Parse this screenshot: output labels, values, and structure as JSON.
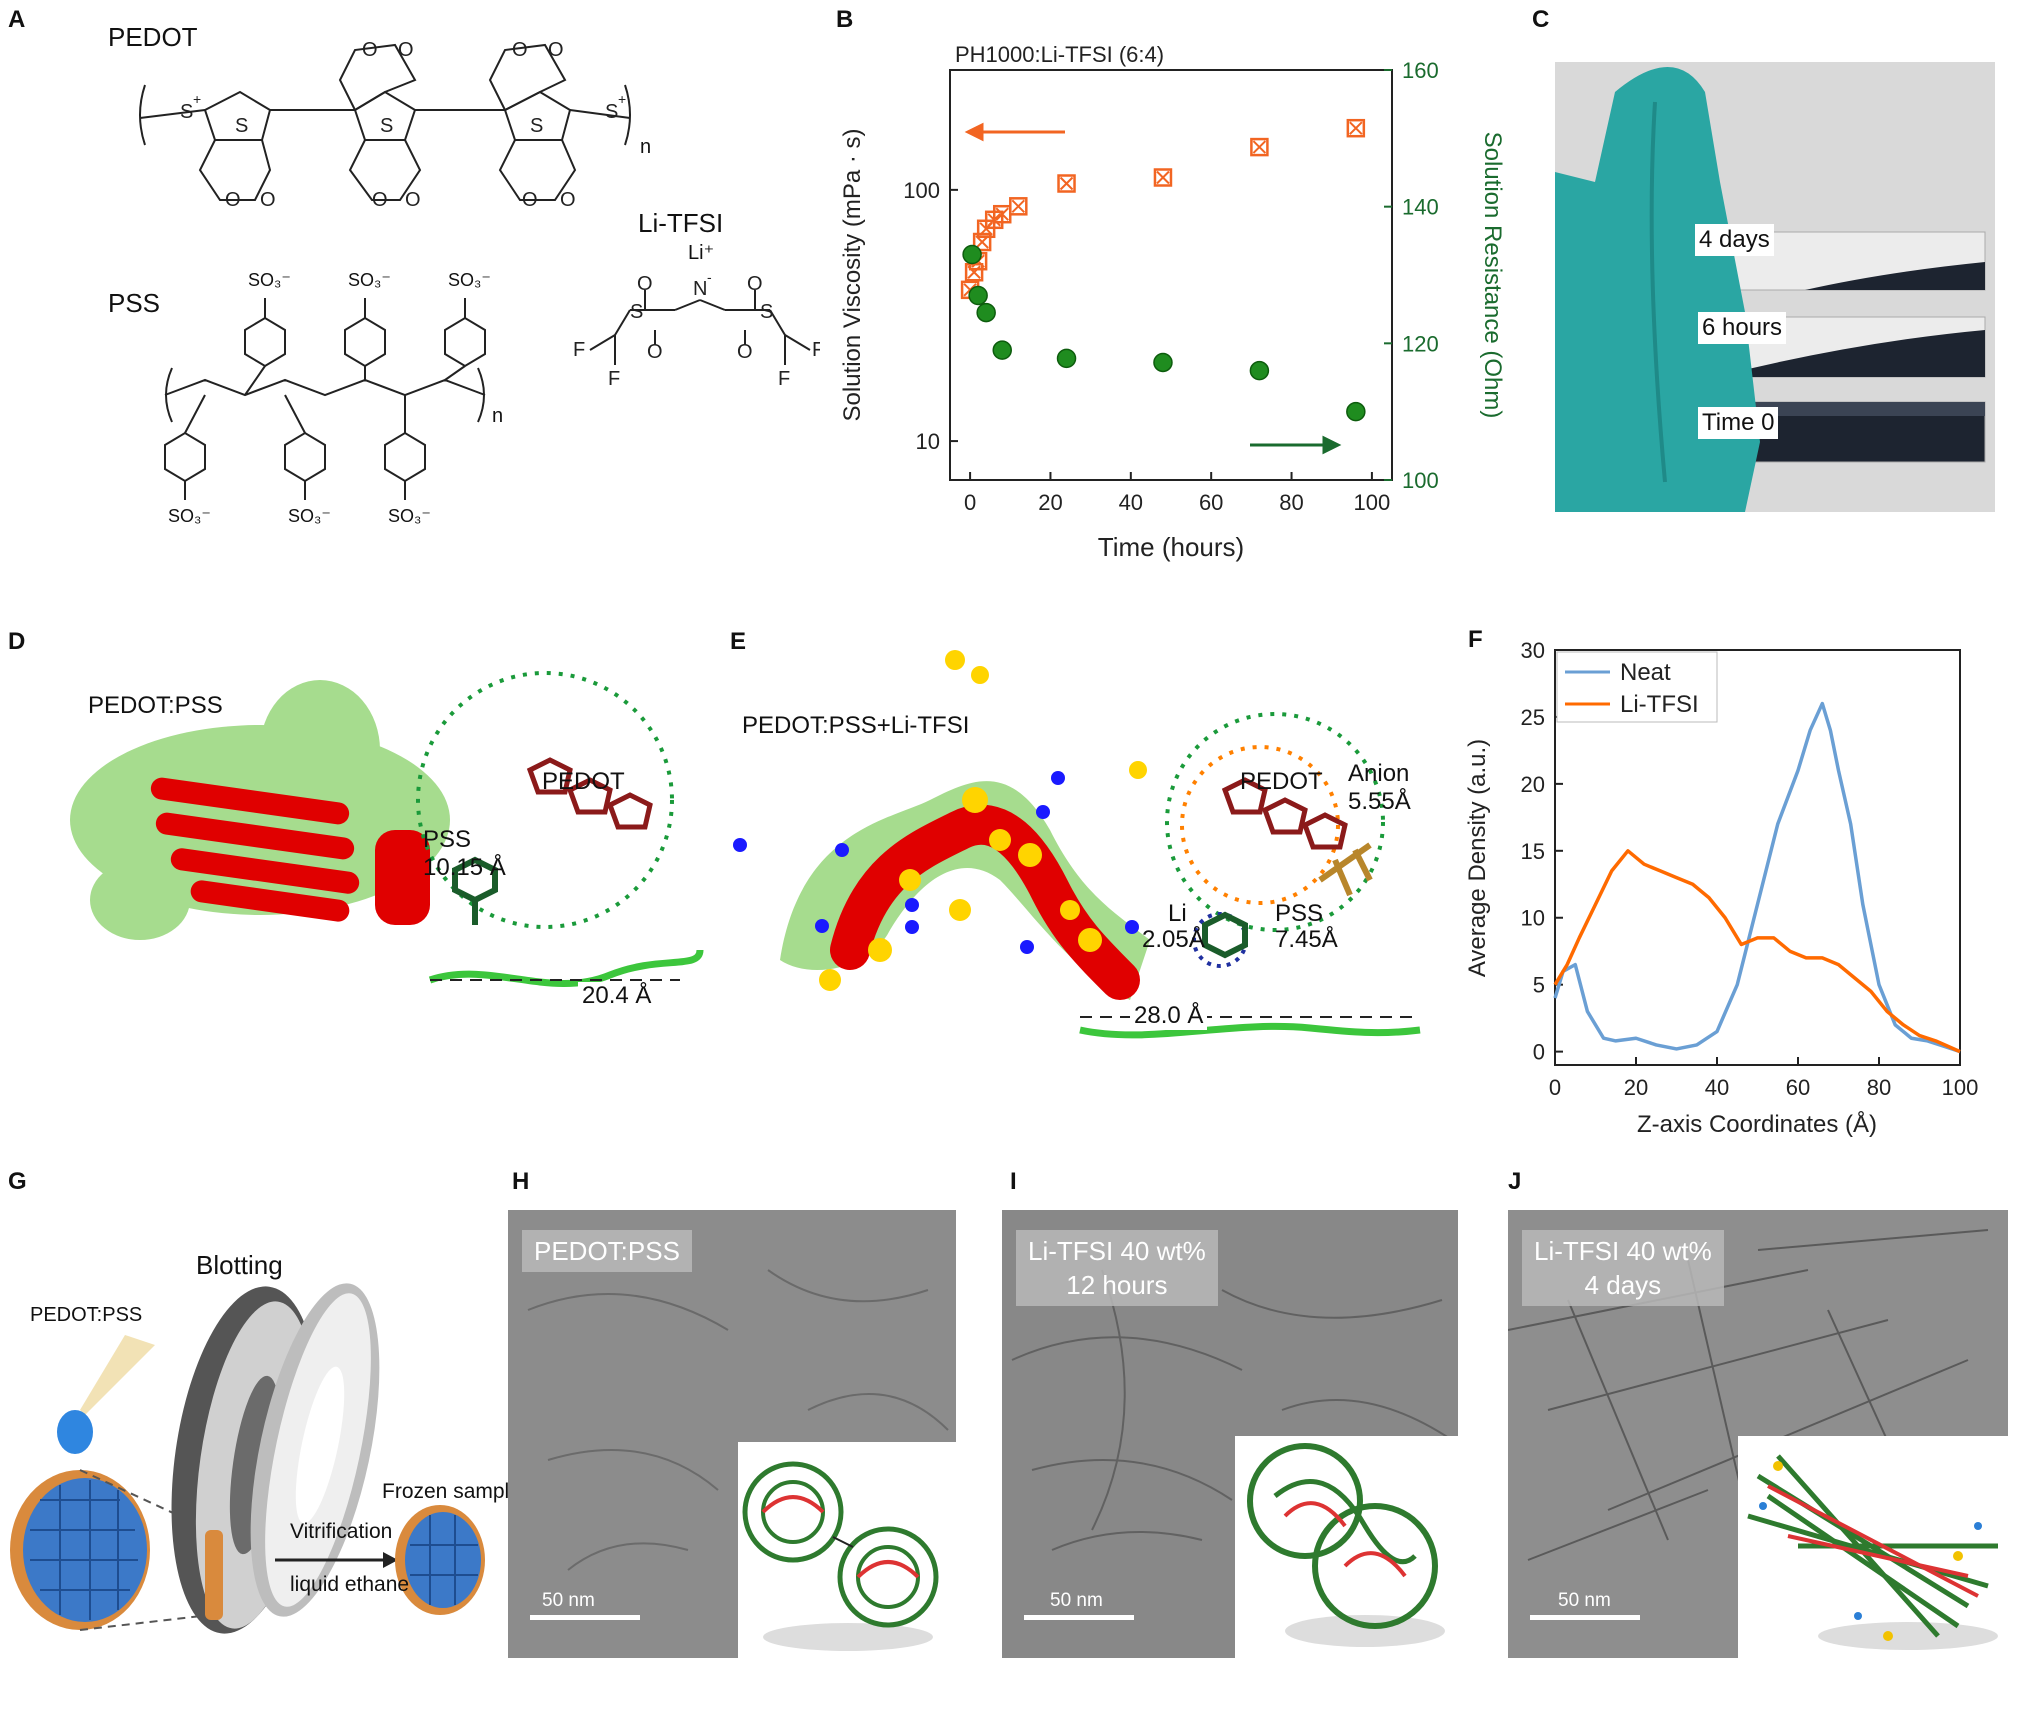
{
  "panels": {
    "A": {
      "label": "A",
      "pedot": "PEDOT",
      "pss": "PSS",
      "litfsi": "Li-TFSI",
      "so3": "SO₃⁻",
      "li_plus": "Li⁺",
      "n": "n"
    },
    "B": {
      "label": "B",
      "title": "PH1000:Li-TFSI (6:4)",
      "xlabel": "Time (hours)",
      "ylabel_left": "Solution Viscosity (mPa · s)",
      "ylabel_right": "Solution Resistance (Ohm)"
    },
    "C": {
      "label": "C",
      "vial_labels": [
        "4 days",
        "6 hours",
        "Time 0"
      ]
    },
    "D": {
      "label": "D",
      "title": "PEDOT:PSS",
      "pedot": "PEDOT",
      "pss": "PSS",
      "pss_dist": "10.15 Å",
      "length": "20.4 Å"
    },
    "E": {
      "label": "E",
      "title": "PEDOT:PSS+Li-TFSI",
      "pedot": "PEDOT",
      "anion": "Anion",
      "anion_dist": "5.55Å",
      "li": "Li",
      "li_dist": "2.05Å",
      "pss": "PSS",
      "pss_dist": "7.45Å",
      "length": "28.0 Å"
    },
    "F": {
      "label": "F",
      "xlabel": "Z-axis Coordinates (Å)",
      "ylabel": "Average Density (a.u.)",
      "legend": [
        "Neat",
        "Li-TFSI"
      ]
    },
    "G": {
      "label": "G",
      "blotting": "Blotting",
      "pedotpss": "PEDOT:PSS",
      "frozen": "Frozen sample",
      "vitrification": "Vitrification",
      "ethane": "liquid ethane"
    },
    "H": {
      "label": "H",
      "tag": "PEDOT:PSS",
      "scale": "50 nm"
    },
    "I": {
      "label": "I",
      "tag_line1": "Li-TFSI 40 wt%",
      "tag_line2": "12 hours",
      "scale": "50 nm"
    },
    "J": {
      "label": "J",
      "tag_line1": "Li-TFSI 40 wt%",
      "tag_line2": "4 days",
      "scale": "50 nm"
    }
  },
  "colors": {
    "orange": "#f26522",
    "green_marker": "#1f8c1f",
    "green_axis": "#1a6b2e",
    "blue_neat": "#6a9fd4",
    "orange_litfsi": "#ff6a00",
    "glove": "#2aa6a3"
  },
  "chart_data": [
    {
      "panel": "B",
      "type": "scatter",
      "title": "PH1000:Li-TFSI (6:4)",
      "xlabel": "Time (hours)",
      "xlim": [
        -5,
        105
      ],
      "xticks": [
        0,
        20,
        40,
        60,
        80,
        100
      ],
      "series": [
        {
          "axis": "left",
          "ylabel": "Solution Viscosity (mPa · s)",
          "scale": "log",
          "ylim": [
            7,
            300
          ],
          "yticks": [
            10,
            100
          ],
          "marker": "crossed-square",
          "x": [
            0,
            1,
            2,
            3,
            4,
            6,
            8,
            12,
            24,
            48,
            72,
            96
          ],
          "y": [
            40,
            47,
            52,
            62,
            70,
            76,
            80,
            86,
            106,
            112,
            148,
            176
          ]
        },
        {
          "axis": "right",
          "ylabel": "Solution Resistance (Ohm)",
          "scale": "linear",
          "ylim": [
            100,
            160
          ],
          "yticks": [
            100,
            120,
            140,
            160
          ],
          "marker": "sphere",
          "x": [
            0.5,
            2,
            4,
            8,
            24,
            48,
            72,
            96
          ],
          "y": [
            133,
            127,
            124.5,
            119,
            117.8,
            117.2,
            116,
            110
          ]
        }
      ]
    },
    {
      "panel": "F",
      "type": "line",
      "xlabel": "Z-axis Coordinates (Å)",
      "ylabel": "Average Density (a.u.)",
      "xlim": [
        0,
        100
      ],
      "ylim": [
        -1,
        30
      ],
      "xticks": [
        0,
        20,
        40,
        60,
        80,
        100
      ],
      "yticks": [
        0,
        5,
        10,
        15,
        20,
        25,
        30
      ],
      "legend_position": "top-left",
      "series": [
        {
          "name": "Neat",
          "x": [
            0,
            2,
            5,
            8,
            12,
            15,
            20,
            25,
            30,
            35,
            40,
            45,
            50,
            55,
            60,
            63,
            66,
            68,
            70,
            73,
            76,
            80,
            84,
            88,
            92,
            96,
            100
          ],
          "y": [
            4,
            6,
            6.5,
            3,
            1,
            0.8,
            1,
            0.5,
            0.2,
            0.5,
            1.5,
            5,
            11,
            17,
            21,
            24,
            26,
            24,
            21,
            17,
            11,
            5,
            2,
            1,
            0.8,
            0.4,
            0
          ]
        },
        {
          "name": "Li-TFSI",
          "x": [
            0,
            3,
            6,
            10,
            14,
            18,
            22,
            26,
            30,
            34,
            38,
            42,
            46,
            50,
            54,
            58,
            62,
            66,
            70,
            74,
            78,
            82,
            86,
            90,
            94,
            100
          ],
          "y": [
            5,
            6.5,
            8.5,
            11,
            13.5,
            15,
            14,
            13.5,
            13,
            12.5,
            11.5,
            10,
            8,
            8.5,
            8.5,
            7.5,
            7,
            7,
            6.5,
            5.5,
            4.5,
            3,
            2,
            1.2,
            0.8,
            0
          ]
        }
      ]
    }
  ]
}
